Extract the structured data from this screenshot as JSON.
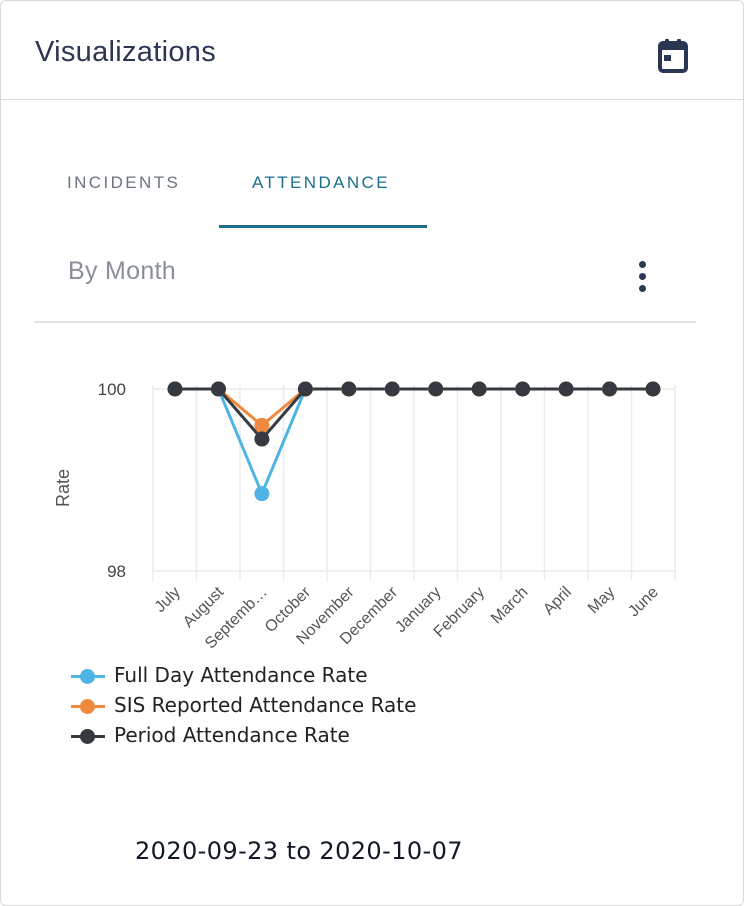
{
  "card": {
    "title": "Visualizations",
    "calendar_icon": "calendar-icon"
  },
  "tabs": [
    {
      "label": "INCIDENTS",
      "active": false
    },
    {
      "label": "ATTENDANCE",
      "active": true
    }
  ],
  "panel": {
    "subtitle": "By Month",
    "menu_icon": "more-vert-icon"
  },
  "chart_data": {
    "type": "line",
    "categories": [
      "July",
      "August",
      "Septemb…",
      "October",
      "November",
      "December",
      "January",
      "February",
      "March",
      "April",
      "May",
      "June"
    ],
    "series": [
      {
        "name": "Full Day Attendance Rate",
        "color": "#4fb3e3",
        "values": [
          100,
          100,
          98.85,
          100,
          100,
          100,
          100,
          100,
          100,
          100,
          100,
          100
        ]
      },
      {
        "name": "SIS Reported Attendance Rate",
        "color": "#f0883e",
        "values": [
          100,
          100,
          99.6,
          100,
          100,
          100,
          100,
          100,
          100,
          100,
          100,
          100
        ]
      },
      {
        "name": "Period Attendance Rate",
        "color": "#343a40",
        "values": [
          100,
          100,
          99.45,
          100,
          100,
          100,
          100,
          100,
          100,
          100,
          100,
          100
        ]
      }
    ],
    "ylabel": "Rate",
    "yticks": [
      "100",
      "98"
    ],
    "ylim": [
      98,
      100
    ],
    "grid": true,
    "legend": "bottom-left"
  },
  "footer": {
    "date_range": "2020-09-23 to 2020-10-07"
  }
}
